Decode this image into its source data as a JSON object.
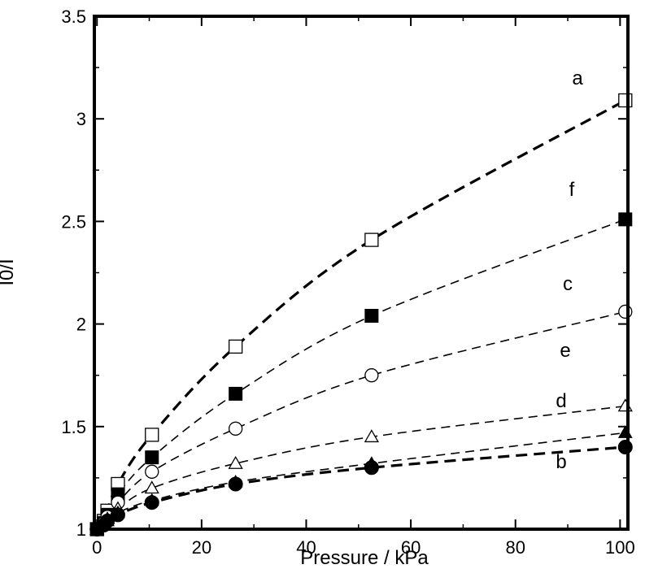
{
  "chart_data": {
    "type": "scatter",
    "title": "",
    "xlabel": "Pressure / kPa",
    "ylabel": "I0/I",
    "xlim": [
      -0.5,
      101.5
    ],
    "ylim": [
      1,
      3.5
    ],
    "xticks": [
      0,
      20,
      40,
      60,
      80,
      100
    ],
    "yticks": [
      1,
      1.5,
      2,
      2.5,
      3,
      3.5
    ],
    "xtick_labels": [
      "0",
      "20",
      "40",
      "60",
      "80",
      "100"
    ],
    "ytick_labels": [
      "1",
      "1.5",
      "2",
      "2.5",
      "3",
      "3.5"
    ],
    "grid": false,
    "legend": "none",
    "series": [
      {
        "label": "a",
        "marker": "open-square",
        "line": "thick-dashed",
        "x": [
          0,
          1.3,
          2.0,
          4.0,
          10.5,
          26.5,
          52.5,
          101
        ],
        "y": [
          1.0,
          1.04,
          1.09,
          1.22,
          1.46,
          1.89,
          2.41,
          3.09
        ]
      },
      {
        "label": "f",
        "marker": "filled-square",
        "line": "dashed",
        "x": [
          0,
          1.3,
          2.0,
          4.0,
          10.5,
          26.5,
          52.5,
          101
        ],
        "y": [
          1.0,
          1.03,
          1.07,
          1.17,
          1.35,
          1.66,
          2.04,
          2.51
        ]
      },
      {
        "label": "c",
        "marker": "open-circle",
        "line": "dashed",
        "x": [
          0,
          1.3,
          2.0,
          4.0,
          10.5,
          26.5,
          52.5,
          101
        ],
        "y": [
          1.0,
          1.03,
          1.06,
          1.13,
          1.28,
          1.49,
          1.75,
          2.06
        ]
      },
      {
        "label": "e",
        "marker": "open-triangle",
        "line": "dashed",
        "x": [
          0,
          1.3,
          2.0,
          4.0,
          10.5,
          26.5,
          52.5,
          101
        ],
        "y": [
          1.0,
          1.02,
          1.05,
          1.1,
          1.2,
          1.32,
          1.45,
          1.6
        ]
      },
      {
        "label": "d",
        "marker": "filled-triangle",
        "line": "dashed",
        "x": [
          0,
          1.3,
          2.0,
          4.0,
          10.5,
          26.5,
          52.5,
          101
        ],
        "y": [
          1.0,
          1.02,
          1.04,
          1.08,
          1.14,
          1.23,
          1.32,
          1.47
        ]
      },
      {
        "label": "b",
        "marker": "filled-circle",
        "line": "thick-dashed",
        "x": [
          0,
          1.3,
          2.0,
          4.0,
          10.5,
          26.5,
          52.5,
          101
        ],
        "y": [
          1.0,
          1.02,
          1.04,
          1.07,
          1.13,
          1.22,
          1.3,
          1.4
        ]
      }
    ]
  }
}
